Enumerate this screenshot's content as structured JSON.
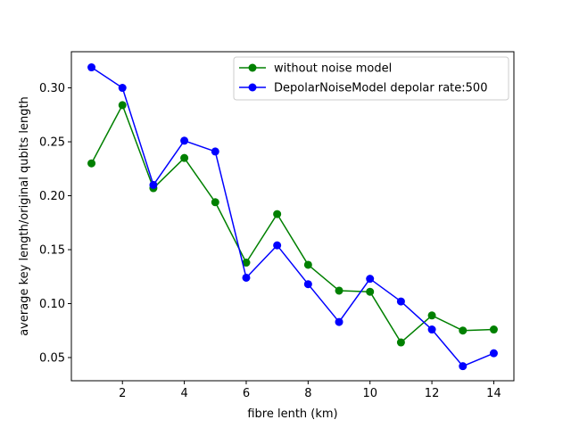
{
  "chart_data": {
    "type": "line",
    "title": "",
    "xlabel": "fibre lenth (km)",
    "ylabel": "average key length/original qubits length",
    "xlim": [
      0.35,
      14.65
    ],
    "ylim": [
      0.0285,
      0.3335
    ],
    "xticks": [
      2,
      4,
      6,
      8,
      10,
      12,
      14
    ],
    "yticks": [
      0.05,
      0.1,
      0.15,
      0.2,
      0.25,
      0.3
    ],
    "ytick_labels": [
      "0.05",
      "0.10",
      "0.15",
      "0.20",
      "0.25",
      "0.30"
    ],
    "grid": false,
    "legend_position": "top-right",
    "x": [
      1,
      2,
      3,
      4,
      5,
      6,
      7,
      8,
      9,
      10,
      11,
      12,
      13,
      14
    ],
    "series": [
      {
        "name": "without noise model",
        "color": "#008000",
        "values": [
          0.23,
          0.284,
          0.207,
          0.235,
          0.194,
          0.138,
          0.183,
          0.136,
          0.112,
          0.111,
          0.064,
          0.089,
          0.075,
          0.076
        ]
      },
      {
        "name": "DepolarNoiseModel depolar rate:500",
        "color": "#0000ff",
        "values": [
          0.319,
          0.3,
          0.21,
          0.251,
          0.241,
          0.124,
          0.154,
          0.118,
          0.083,
          0.123,
          0.102,
          0.076,
          0.042,
          0.054
        ]
      }
    ]
  }
}
